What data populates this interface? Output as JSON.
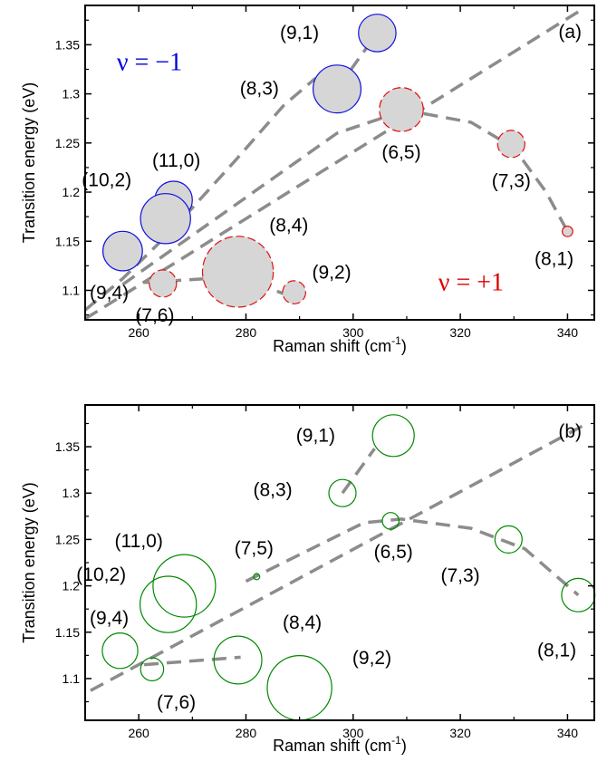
{
  "chart_data": [
    {
      "type": "scatter",
      "panel": "(a)",
      "xlabel": "Raman shift (cm",
      "xlabel_sup": "-1",
      "xlabel_close": ")",
      "ylabel": "Transition energy (eV)",
      "xlim": [
        250,
        345
      ],
      "ylim": [
        1.07,
        1.39
      ],
      "xticks": [
        260,
        280,
        300,
        320,
        340
      ],
      "xtick_labels": [
        "260",
        "280",
        "300",
        "320",
        "340"
      ],
      "yticks": [
        1.1,
        1.15,
        1.2,
        1.25,
        1.3,
        1.35
      ],
      "ytick_labels": [
        "1.1",
        "1.15",
        "1.2",
        "1.25",
        "1.3",
        "1.35"
      ],
      "annotations": [
        {
          "text": "ν = −1",
          "x": 262,
          "y": 1.332,
          "color": "#0000dd"
        },
        {
          "text": "ν = +1",
          "x": 322,
          "y": 1.108,
          "color": "#dd0000"
        }
      ],
      "fill_color": "#d6d6d6",
      "points": [
        {
          "label": "(9,1)",
          "x": 304.5,
          "y": 1.362,
          "r": 1.8,
          "family": "minus",
          "lx": 290,
          "ly": 1.362
        },
        {
          "label": "(8,3)",
          "x": 297,
          "y": 1.305,
          "r": 2.3,
          "family": "minus",
          "lx": 282.5,
          "ly": 1.305
        },
        {
          "label": "(11,0)",
          "x": 266.5,
          "y": 1.192,
          "r": 1.8,
          "family": "minus",
          "lx": 267,
          "ly": 1.232
        },
        {
          "label": "(10,2)",
          "x": 265,
          "y": 1.173,
          "r": 2.4,
          "family": "minus",
          "lx": 254,
          "ly": 1.212
        },
        {
          "label": "(9,4)",
          "x": 257,
          "y": 1.14,
          "r": 1.9,
          "family": "minus",
          "lx": 254.5,
          "ly": 1.097
        },
        {
          "label": "(6,5)",
          "x": 309,
          "y": 1.284,
          "r": 2.1,
          "family": "plus",
          "lx": 309,
          "ly": 1.24
        },
        {
          "label": "(7,3)",
          "x": 329.5,
          "y": 1.249,
          "r": 1.3,
          "family": "plus",
          "lx": 329.5,
          "ly": 1.211
        },
        {
          "label": "(8,1)",
          "x": 340,
          "y": 1.16,
          "r": 0.5,
          "family": "plus",
          "lx": 337.5,
          "ly": 1.132
        },
        {
          "label": "(8,4)",
          "x": 278.5,
          "y": 1.119,
          "r": 3.4,
          "family": "plus",
          "lx": 288,
          "ly": 1.166
        },
        {
          "label": "(9,2)",
          "x": 289,
          "y": 1.098,
          "r": 1.1,
          "family": "plus",
          "lx": 296,
          "ly": 1.118
        },
        {
          "label": "(7,6)",
          "x": 264.5,
          "y": 1.107,
          "r": 1.3,
          "family": "plus",
          "lx": 263,
          "ly": 1.074
        }
      ],
      "lines": [
        {
          "points": [
            [
              250,
              1.071
            ],
            [
              343,
              1.387
            ]
          ]
        },
        {
          "points": [
            [
              257,
              1.106
            ],
            [
              297,
              1.26
            ],
            [
              309,
              1.282
            ]
          ]
        },
        {
          "points": [
            [
              261,
              1.108
            ],
            [
              279,
              1.114
            ],
            [
              290,
              1.09
            ]
          ]
        },
        {
          "points": [
            [
              297,
              1.305
            ],
            [
              304.5,
              1.362
            ]
          ]
        },
        {
          "points": [
            [
              309,
              1.284
            ],
            [
              322,
              1.271
            ],
            [
              330,
              1.245
            ],
            [
              336,
              1.2
            ],
            [
              340,
              1.16
            ]
          ]
        },
        {
          "points": [
            [
              250,
              1.08
            ],
            [
              257,
              1.112
            ],
            [
              266,
              1.16
            ],
            [
              278,
              1.232
            ],
            [
              287,
              1.288
            ],
            [
              293,
              1.316
            ]
          ]
        }
      ]
    },
    {
      "type": "scatter",
      "panel": "(b)",
      "xlabel": "Raman shift (cm",
      "xlabel_sup": "-1",
      "xlabel_close": ")",
      "ylabel": "Transition energy (eV)",
      "xlim": [
        250,
        345
      ],
      "ylim": [
        1.055,
        1.395
      ],
      "xticks": [
        260,
        280,
        300,
        320,
        340
      ],
      "xtick_labels": [
        "260",
        "280",
        "300",
        "320",
        "340"
      ],
      "yticks": [
        1.1,
        1.15,
        1.2,
        1.25,
        1.3,
        1.35
      ],
      "ytick_labels": [
        "1.1",
        "1.15",
        "1.2",
        "1.25",
        "1.3",
        "1.35"
      ],
      "circle_color": "#008800",
      "points": [
        {
          "label": "(9,1)",
          "x": 307.5,
          "y": 1.362,
          "r": 2.0,
          "lx": 293,
          "ly": 1.362
        },
        {
          "label": "(8,3)",
          "x": 298,
          "y": 1.3,
          "r": 1.3,
          "lx": 285,
          "ly": 1.303
        },
        {
          "label": "(6,5)",
          "x": 307,
          "y": 1.27,
          "r": 0.8,
          "lx": 307.5,
          "ly": 1.236
        },
        {
          "label": "(7,3)",
          "x": 329,
          "y": 1.25,
          "r": 1.3,
          "lx": 320,
          "ly": 1.211
        },
        {
          "label": "(8,1)",
          "x": 342,
          "y": 1.19,
          "r": 1.6,
          "lx": 338,
          "ly": 1.13
        },
        {
          "label": "(7,5)",
          "x": 282,
          "y": 1.21,
          "r": 0.3,
          "lx": 281.5,
          "ly": 1.24
        },
        {
          "label": "(11,0)",
          "x": 268.5,
          "y": 1.2,
          "r": 3.0,
          "lx": 260,
          "ly": 1.248
        },
        {
          "label": "(10,2)",
          "x": 265.5,
          "y": 1.18,
          "r": 2.7,
          "lx": 253,
          "ly": 1.212
        },
        {
          "label": "(9,4)",
          "x": 256.5,
          "y": 1.13,
          "r": 1.7,
          "lx": 254.5,
          "ly": 1.165
        },
        {
          "label": "(8,4)",
          "x": 278.5,
          "y": 1.12,
          "r": 2.3,
          "lx": 290.5,
          "ly": 1.16
        },
        {
          "label": "(9,2)",
          "x": 290,
          "y": 1.09,
          "r": 3.1,
          "lx": 303.5,
          "ly": 1.122
        },
        {
          "label": "(7,6)",
          "x": 262.5,
          "y": 1.11,
          "r": 1.1,
          "lx": 267,
          "ly": 1.074
        }
      ],
      "lines": [
        {
          "points": [
            [
              251,
              1.087
            ],
            [
              343,
              1.373
            ]
          ]
        },
        {
          "points": [
            [
              261,
              1.115
            ],
            [
              279,
              1.123
            ]
          ]
        },
        {
          "points": [
            [
              298,
              1.3
            ],
            [
              304,
              1.348
            ]
          ]
        },
        {
          "points": [
            [
              280,
              1.205
            ],
            [
              302,
              1.268
            ],
            [
              309,
              1.272
            ],
            [
              322,
              1.262
            ],
            [
              332,
              1.24
            ],
            [
              342,
              1.19
            ]
          ]
        }
      ]
    }
  ]
}
